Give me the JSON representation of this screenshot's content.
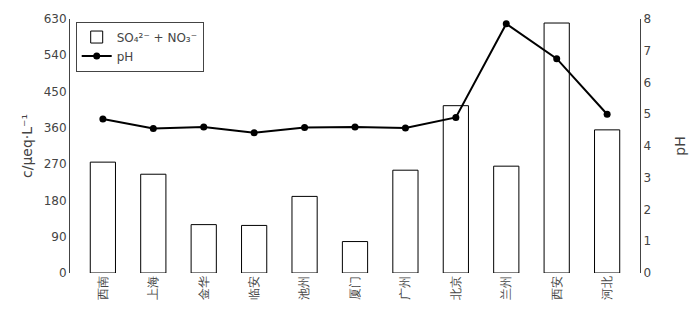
{
  "chart_data": {
    "type": "bar",
    "categories": [
      "西南",
      "上海",
      "金华",
      "临安",
      "池州",
      "厦门",
      "广州",
      "北京",
      "兰州",
      "西安",
      "河北"
    ],
    "series": [
      {
        "name": "SO₄²⁻ + NO₃⁻",
        "type": "bar",
        "color": "white",
        "values": [
          275,
          245,
          120,
          118,
          190,
          78,
          255,
          415,
          265,
          620,
          355
        ]
      },
      {
        "name": "pH",
        "type": "line",
        "axis": "y2",
        "color": "black",
        "marker": "circle",
        "line_style": "solid",
        "values": [
          4.85,
          4.55,
          4.6,
          4.42,
          4.58,
          4.6,
          4.57,
          4.9,
          7.85,
          6.75,
          5.0
        ]
      }
    ],
    "ylabel": "c/μeq·L⁻¹",
    "y2label": "pH",
    "ylim": [
      0,
      630
    ],
    "yticks": [
      0,
      90,
      180,
      270,
      360,
      450,
      540,
      630
    ],
    "y2lim": [
      0,
      8
    ],
    "y2ticks": [
      0,
      1,
      2,
      3,
      4,
      5,
      6,
      7,
      8
    ],
    "grid": false,
    "legend": "upper left"
  }
}
